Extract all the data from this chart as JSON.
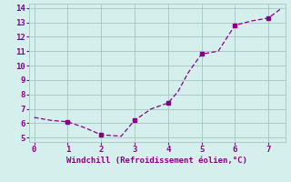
{
  "x": [
    0,
    0.5,
    1,
    1.5,
    2,
    2.3,
    2.6,
    3,
    3.5,
    4,
    4.3,
    4.6,
    5,
    5.5,
    6,
    6.5,
    7,
    7.4
  ],
  "y": [
    6.4,
    6.2,
    6.1,
    5.7,
    5.2,
    5.15,
    5.1,
    6.2,
    7.0,
    7.4,
    8.2,
    9.5,
    10.8,
    11.0,
    12.8,
    13.1,
    13.3,
    14.0
  ],
  "marker_x": [
    1,
    2,
    3,
    4,
    5,
    6,
    7
  ],
  "marker_y": [
    6.1,
    5.2,
    6.2,
    7.4,
    10.8,
    12.8,
    13.3
  ],
  "line_color": "#880088",
  "marker_color": "#880088",
  "bg_color": "#d5f0ec",
  "grid_color": "#aaccc8",
  "xlabel": "Windchill (Refroidissement éolien,°C)",
  "xlabel_color": "#880088",
  "tick_color": "#880088",
  "xlim": [
    -0.15,
    7.5
  ],
  "ylim": [
    4.7,
    14.3
  ],
  "xticks": [
    0,
    1,
    2,
    3,
    4,
    5,
    6,
    7
  ],
  "yticks": [
    5,
    6,
    7,
    8,
    9,
    10,
    11,
    12,
    13,
    14
  ]
}
